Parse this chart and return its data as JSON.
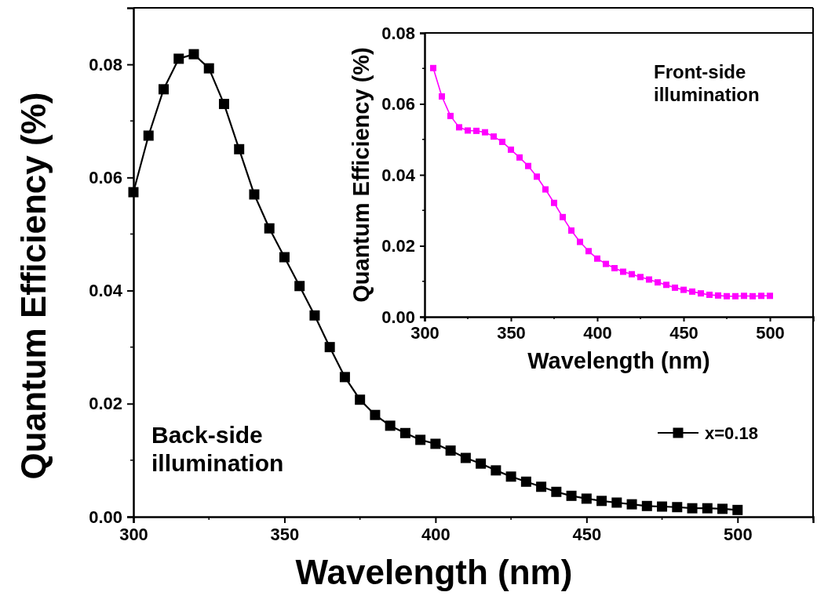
{
  "chart_data": [
    {
      "type": "line",
      "xlabel": "Wavelength (nm)",
      "ylabel": "Quantum Efficiency (%)",
      "xlim": [
        300,
        525
      ],
      "xticks": [
        300,
        350,
        400,
        450,
        500
      ],
      "ylim": [
        0,
        0.09
      ],
      "yticks": [
        {
          "value": 0,
          "label": "0.00"
        },
        {
          "value": 0.02,
          "label": "0.02"
        },
        {
          "value": 0.04,
          "label": "0.04"
        },
        {
          "value": 0.06,
          "label": "0.06"
        },
        {
          "value": 0.08,
          "label": "0.08"
        }
      ],
      "marker": "square",
      "line_style": "solid",
      "legend": "right",
      "grid": false,
      "annotations": [
        "Back-side\nillumination"
      ],
      "x": [
        300,
        305,
        310,
        315,
        320,
        325,
        330,
        335,
        340,
        345,
        350,
        355,
        360,
        365,
        370,
        375,
        380,
        385,
        390,
        395,
        400,
        405,
        410,
        415,
        420,
        425,
        430,
        435,
        440,
        445,
        450,
        455,
        460,
        465,
        470,
        475,
        480,
        485,
        490,
        495,
        500
      ],
      "series": [
        {
          "name": "x=0.18",
          "color": "#000000",
          "values": [
            0.0574,
            0.0674,
            0.0756,
            0.081,
            0.0818,
            0.0793,
            0.073,
            0.065,
            0.057,
            0.051,
            0.0459,
            0.0408,
            0.0356,
            0.03,
            0.0247,
            0.0207,
            0.018,
            0.0161,
            0.0148,
            0.0136,
            0.0129,
            0.0117,
            0.0104,
            0.0094,
            0.0082,
            0.0071,
            0.0062,
            0.0053,
            0.0044,
            0.0037,
            0.0032,
            0.0028,
            0.0025,
            0.0022,
            0.0019,
            0.0018,
            0.0017,
            0.0015,
            0.0015,
            0.0014,
            0.0012
          ]
        }
      ]
    },
    {
      "type": "line",
      "xlabel": "Wavelength (nm)",
      "ylabel": "Quantum Efficiency (%)",
      "xlim": [
        300,
        525
      ],
      "xticks": [
        300,
        350,
        400,
        450,
        500
      ],
      "ylim": [
        0,
        0.08
      ],
      "yticks": [
        {
          "value": 0,
          "label": "0.00"
        },
        {
          "value": 0.02,
          "label": "0.02"
        },
        {
          "value": 0.04,
          "label": "0.04"
        },
        {
          "value": 0.06,
          "label": "0.06"
        },
        {
          "value": 0.08,
          "label": "0.08"
        }
      ],
      "marker": "square",
      "line_style": "solid",
      "grid": false,
      "annotations": [
        "Front-side\nillumination"
      ],
      "x": [
        305,
        310,
        315,
        320,
        325,
        330,
        335,
        340,
        345,
        350,
        355,
        360,
        365,
        370,
        375,
        380,
        385,
        390,
        395,
        400,
        405,
        410,
        415,
        420,
        425,
        430,
        435,
        440,
        445,
        450,
        455,
        460,
        465,
        470,
        475,
        480,
        485,
        490,
        495,
        500
      ],
      "series": [
        {
          "color": "#ff00ff",
          "values": [
            0.0701,
            0.0621,
            0.0566,
            0.0534,
            0.0525,
            0.0524,
            0.052,
            0.0508,
            0.0493,
            0.0471,
            0.0449,
            0.0425,
            0.0395,
            0.0359,
            0.0321,
            0.0281,
            0.0243,
            0.0211,
            0.0185,
            0.0164,
            0.0149,
            0.0137,
            0.0127,
            0.012,
            0.0112,
            0.0105,
            0.0097,
            0.009,
            0.0082,
            0.0076,
            0.0071,
            0.0066,
            0.0062,
            0.006,
            0.0058,
            0.0058,
            0.0059,
            0.0058,
            0.0059,
            0.0059
          ]
        }
      ]
    }
  ]
}
